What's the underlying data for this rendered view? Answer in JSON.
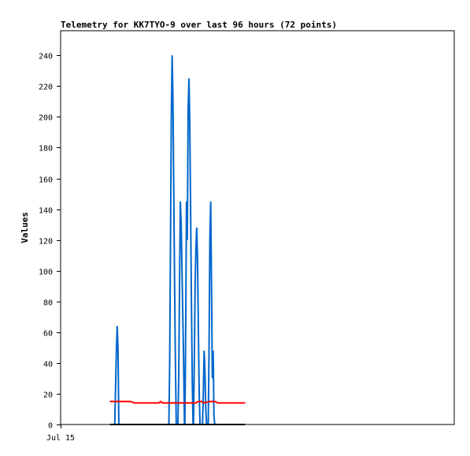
{
  "chart_data": {
    "type": "line",
    "title": "Telemetry for KK7TYO-9 over last 96 hours (72 points)",
    "xlabel": "",
    "ylabel": "Values",
    "x_tick_labels": [
      "Jul 15"
    ],
    "ylim": [
      0,
      256
    ],
    "y_ticks": [
      0,
      20,
      40,
      60,
      80,
      100,
      120,
      140,
      160,
      180,
      200,
      220,
      240
    ],
    "grid": false,
    "legend": "none",
    "series": [
      {
        "color": "#0066cc",
        "points": [
          [
            13.0,
            0
          ],
          [
            13.2,
            0
          ],
          [
            13.6,
            48
          ],
          [
            13.8,
            64
          ],
          [
            14.0,
            48
          ],
          [
            14.2,
            0
          ],
          [
            14.6,
            0
          ],
          [
            24.6,
            0
          ],
          [
            26.4,
            0
          ],
          [
            26.6,
            40
          ],
          [
            26.8,
            120
          ],
          [
            27.0,
            200
          ],
          [
            27.2,
            240
          ],
          [
            27.4,
            210
          ],
          [
            27.6,
            150
          ],
          [
            27.8,
            90
          ],
          [
            28.0,
            40
          ],
          [
            28.2,
            0
          ],
          [
            28.6,
            0
          ],
          [
            28.8,
            30
          ],
          [
            29.0,
            90
          ],
          [
            29.2,
            145
          ],
          [
            29.4,
            130
          ],
          [
            29.6,
            100
          ],
          [
            29.8,
            70
          ],
          [
            30.0,
            40
          ],
          [
            30.2,
            0
          ],
          [
            30.3,
            0
          ],
          [
            30.5,
            60
          ],
          [
            30.7,
            145
          ],
          [
            30.9,
            120
          ],
          [
            31.1,
            205
          ],
          [
            31.3,
            225
          ],
          [
            31.5,
            195
          ],
          [
            31.7,
            140
          ],
          [
            31.9,
            80
          ],
          [
            32.1,
            30
          ],
          [
            32.3,
            0
          ],
          [
            32.4,
            0
          ],
          [
            32.6,
            40
          ],
          [
            32.8,
            90
          ],
          [
            33.0,
            115
          ],
          [
            33.2,
            128
          ],
          [
            33.4,
            105
          ],
          [
            33.6,
            60
          ],
          [
            33.8,
            20
          ],
          [
            34.0,
            0
          ],
          [
            34.6,
            0
          ],
          [
            34.8,
            20
          ],
          [
            35.0,
            48
          ],
          [
            35.2,
            35
          ],
          [
            35.4,
            10
          ],
          [
            35.6,
            0
          ],
          [
            36.0,
            0
          ],
          [
            36.2,
            50
          ],
          [
            36.4,
            120
          ],
          [
            36.6,
            145
          ],
          [
            36.8,
            90
          ],
          [
            37.0,
            30
          ],
          [
            37.2,
            48
          ],
          [
            37.4,
            5
          ],
          [
            37.6,
            0
          ]
        ]
      },
      {
        "color": "#ff0000",
        "points": [
          [
            12.0,
            15
          ],
          [
            17.0,
            15
          ],
          [
            18.0,
            14
          ],
          [
            24.0,
            14
          ],
          [
            24.4,
            15
          ],
          [
            24.8,
            14
          ],
          [
            33.0,
            14
          ],
          [
            33.6,
            15
          ],
          [
            34.4,
            15
          ],
          [
            35.0,
            14
          ],
          [
            36.4,
            15
          ],
          [
            37.6,
            15
          ],
          [
            38.4,
            14
          ],
          [
            45.0,
            14
          ]
        ]
      },
      {
        "color": "#000000",
        "points": [
          [
            12.0,
            0
          ],
          [
            45.0,
            0
          ]
        ]
      }
    ]
  }
}
